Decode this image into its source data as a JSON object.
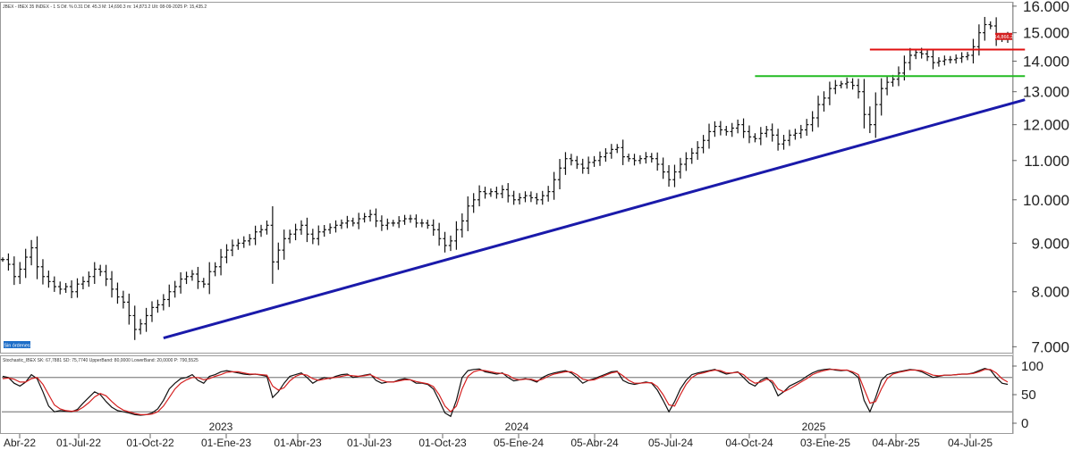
{
  "header": {
    "main": "JBEX - IBEX 35 INDEX - 1 S Dif. % 0.31  Dif. 45.3  M: 14,690.3  m: 14,873.2  Ult: 08-09-2025  P: 15,435.2",
    "stoch": "Stochastic_IBEX  SK: 67,7881  SD: 75,7740  UpperBand: 80,0000  LowerBand: 20,0000  P: 790,5525"
  },
  "badges": {
    "last_price": "14,866.2",
    "sin_ordenes": "Sin órdenes"
  },
  "colors": {
    "price": "#111111",
    "trendline": "#1a1aaa",
    "resistance": "#e01010",
    "support": "#22bb22",
    "stoch_k": "#111111",
    "stoch_d": "#d42020",
    "badge_price": "#d42020",
    "badge_orders": "#1e6ec8"
  },
  "chart_data": [
    {
      "type": "ohlc-bar",
      "title": "IBEX 35 INDEX",
      "timeframe": "weekly",
      "ylim": [
        6900,
        16100
      ],
      "y_scale": "log",
      "y_ticks": [
        "7.000",
        "8.000",
        "9.000",
        "10.000",
        "11.000",
        "12.000",
        "13.000",
        "14.000",
        "15.000",
        "16.000"
      ],
      "x_ticks": [
        "Abr-22",
        "01-Jul-22",
        "01-Oct-22",
        "01-Ene-23",
        "01-Abr-23",
        "01-Jul-23",
        "01-Oct-23",
        "05-Ene-24",
        "05-Abr-24",
        "05-Jul-24",
        "04-Oct-24",
        "03-Ene-25",
        "04-Abr-25",
        "04-Jul-25"
      ],
      "year_labels": [
        "2023",
        "2024",
        "2025"
      ],
      "closes": [
        8650,
        8550,
        8300,
        8450,
        8700,
        8900,
        8500,
        8300,
        8200,
        8100,
        8050,
        8100,
        8000,
        8150,
        8200,
        8300,
        8450,
        8400,
        8250,
        8050,
        7900,
        7800,
        7550,
        7300,
        7400,
        7550,
        7700,
        7750,
        7850,
        8000,
        8100,
        8250,
        8300,
        8350,
        8200,
        8150,
        8400,
        8500,
        8700,
        8850,
        8950,
        9000,
        9050,
        9100,
        9250,
        9300,
        9400,
        8600,
        8850,
        9100,
        9200,
        9300,
        9400,
        9200,
        9100,
        9250,
        9300,
        9350,
        9400,
        9450,
        9500,
        9450,
        9550,
        9600,
        9650,
        9500,
        9400,
        9450,
        9450,
        9500,
        9550,
        9550,
        9450,
        9450,
        9400,
        9300,
        9100,
        8950,
        9050,
        9300,
        9500,
        9850,
        10000,
        10200,
        10150,
        10200,
        10150,
        10250,
        10100,
        10000,
        10050,
        10100,
        10050,
        10000,
        10100,
        10200,
        10500,
        10800,
        11050,
        11000,
        10900,
        10800,
        10950,
        11000,
        11100,
        11200,
        11300,
        11350,
        11100,
        11050,
        11000,
        11050,
        11100,
        11050,
        10900,
        10700,
        10500,
        10700,
        10900,
        11050,
        11200,
        11350,
        11550,
        11800,
        11950,
        11850,
        11800,
        11900,
        12000,
        11800,
        11650,
        11600,
        11750,
        11850,
        11700,
        11450,
        11550,
        11700,
        11750,
        11850,
        12000,
        12200,
        12600,
        12800,
        13100,
        13200,
        13250,
        13300,
        13200,
        13000,
        12300,
        12000,
        12600,
        13100,
        13300,
        13400,
        13600,
        13950,
        14200,
        14300,
        14250,
        14150,
        13950,
        14000,
        14050,
        14050,
        14100,
        14150,
        14200,
        14500,
        15000,
        15300,
        15250,
        14850,
        14800,
        14866
      ],
      "trendline": {
        "from": [
          "2022-10-14",
          7150
        ],
        "to": [
          "2025-08-29",
          12750
        ],
        "color": "blue"
      },
      "resistance": {
        "value": 14400,
        "from": "2025-02-21",
        "to": "2025-08-29",
        "color": "red"
      },
      "support": {
        "value": 13500,
        "from": "2024-10-04",
        "to": "2025-08-29",
        "color": "green"
      }
    },
    {
      "type": "line",
      "title": "Stochastic_IBEX",
      "ylim": [
        0,
        100
      ],
      "y_ticks": [
        "100",
        "50",
        "0"
      ],
      "bands": [
        80,
        20
      ],
      "series": [
        {
          "name": "SK",
          "values": [
            82,
            80,
            70,
            65,
            72,
            85,
            78,
            55,
            30,
            20,
            22,
            21,
            20,
            24,
            35,
            45,
            55,
            50,
            38,
            28,
            22,
            20,
            18,
            15,
            14,
            15,
            18,
            25,
            40,
            60,
            70,
            78,
            80,
            85,
            75,
            70,
            82,
            85,
            90,
            92,
            90,
            88,
            86,
            85,
            86,
            84,
            82,
            45,
            55,
            70,
            82,
            85,
            88,
            80,
            70,
            76,
            80,
            78,
            82,
            85,
            86,
            80,
            82,
            84,
            86,
            75,
            70,
            72,
            72,
            76,
            78,
            76,
            70,
            70,
            68,
            60,
            40,
            18,
            12,
            40,
            80,
            92,
            94,
            95,
            90,
            88,
            86,
            88,
            80,
            74,
            76,
            78,
            76,
            72,
            80,
            85,
            88,
            90,
            92,
            88,
            80,
            70,
            75,
            78,
            82,
            86,
            90,
            91,
            75,
            70,
            68,
            70,
            72,
            70,
            58,
            40,
            20,
            38,
            60,
            75,
            85,
            88,
            90,
            92,
            94,
            90,
            86,
            88,
            90,
            80,
            70,
            65,
            75,
            80,
            70,
            48,
            55,
            65,
            70,
            75,
            82,
            88,
            92,
            94,
            95,
            93,
            92,
            93,
            88,
            80,
            40,
            20,
            45,
            75,
            85,
            88,
            90,
            92,
            94,
            93,
            90,
            85,
            80,
            82,
            84,
            84,
            85,
            86,
            86,
            88,
            92,
            96,
            93,
            80,
            70,
            68
          ]
        },
        {
          "name": "SD",
          "values": [
            78,
            79,
            77,
            72,
            72,
            78,
            80,
            68,
            50,
            32,
            25,
            22,
            21,
            22,
            28,
            36,
            46,
            52,
            48,
            38,
            29,
            23,
            20,
            17,
            15,
            15,
            16,
            20,
            30,
            45,
            60,
            70,
            76,
            80,
            80,
            76,
            78,
            82,
            85,
            89,
            90,
            90,
            88,
            86,
            86,
            85,
            84,
            65,
            58,
            62,
            74,
            82,
            86,
            84,
            78,
            75,
            77,
            79,
            80,
            82,
            84,
            83,
            82,
            83,
            85,
            80,
            75,
            72,
            72,
            74,
            76,
            76,
            73,
            71,
            69,
            64,
            50,
            30,
            20,
            30,
            60,
            82,
            90,
            93,
            92,
            90,
            88,
            87,
            84,
            78,
            76,
            77,
            77,
            74,
            77,
            82,
            86,
            88,
            90,
            90,
            85,
            77,
            75,
            76,
            80,
            84,
            88,
            90,
            83,
            75,
            70,
            70,
            71,
            71,
            64,
            50,
            32,
            30,
            50,
            68,
            80,
            86,
            88,
            91,
            93,
            92,
            88,
            88,
            89,
            85,
            76,
            70,
            72,
            77,
            74,
            60,
            55,
            60,
            66,
            72,
            78,
            85,
            89,
            92,
            94,
            94,
            93,
            93,
            90,
            85,
            60,
            35,
            38,
            60,
            78,
            86,
            89,
            91,
            93,
            93,
            92,
            88,
            84,
            83,
            84,
            84,
            85,
            86,
            86,
            87,
            90,
            94,
            94,
            88,
            78,
            72
          ]
        }
      ]
    }
  ]
}
